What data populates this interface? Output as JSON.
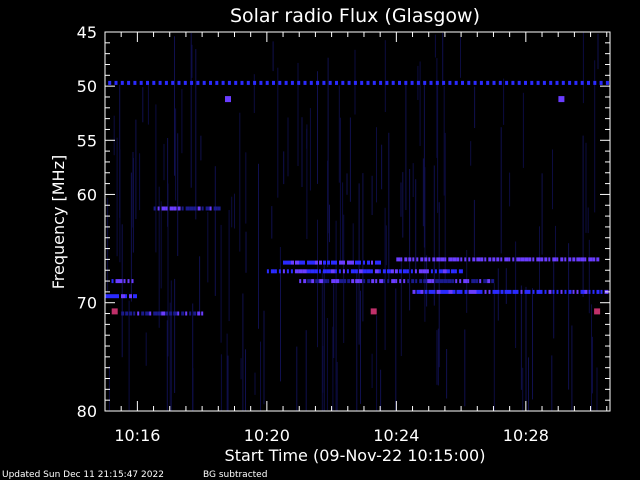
{
  "colors": {
    "background": "#000000",
    "axes": "#ffffff",
    "signal_low": "#1a1a8c",
    "signal_mid": "#2a2aff",
    "signal_high": "#6a3cff",
    "burst": "#c0306a"
  },
  "chart_data": {
    "type": "heatmap",
    "title": "Solar radio Flux (Glasgow)",
    "xlabel": "Start Time (09-Nov-22 10:15:00)",
    "ylabel": "Frequency [MHz]",
    "x_unit": "minutes after 10:15",
    "xlim": [
      0,
      15.6
    ],
    "ylim": [
      45,
      80
    ],
    "y_reversed": true,
    "x_ticks": [
      {
        "value": 1,
        "label": "10:16"
      },
      {
        "value": 5,
        "label": "10:20"
      },
      {
        "value": 9,
        "label": "10:24"
      },
      {
        "value": 13,
        "label": "10:28"
      }
    ],
    "y_ticks": [
      {
        "value": 45,
        "label": "45"
      },
      {
        "value": 50,
        "label": "50"
      },
      {
        "value": 55,
        "label": "55"
      },
      {
        "value": 60,
        "label": "60"
      },
      {
        "value": 70,
        "label": "70"
      },
      {
        "value": 80,
        "label": "80"
      }
    ],
    "features": [
      {
        "kind": "dotted-line",
        "freq": 49.7,
        "t_start": 0.1,
        "t_end": 15.5,
        "intensity": "mid"
      },
      {
        "kind": "band",
        "freq": 66.3,
        "t_start": 5.5,
        "t_end": 8.5,
        "intensity": "mid"
      },
      {
        "kind": "band",
        "freq": 66.0,
        "t_start": 9.0,
        "t_end": 15.3,
        "intensity": "high"
      },
      {
        "kind": "band",
        "freq": 67.1,
        "t_start": 5.0,
        "t_end": 11.0,
        "intensity": "mid"
      },
      {
        "kind": "band",
        "freq": 68.0,
        "t_start": 6.0,
        "t_end": 12.0,
        "intensity": "low"
      },
      {
        "kind": "band",
        "freq": 69.0,
        "t_start": 9.5,
        "t_end": 15.5,
        "intensity": "mid"
      },
      {
        "kind": "band",
        "freq": 68.0,
        "t_start": 0.2,
        "t_end": 0.9,
        "intensity": "mid"
      },
      {
        "kind": "band",
        "freq": 69.4,
        "t_start": 0.0,
        "t_end": 0.9,
        "intensity": "mid"
      },
      {
        "kind": "band",
        "freq": 61.3,
        "t_start": 1.5,
        "t_end": 3.5,
        "intensity": "low"
      },
      {
        "kind": "band",
        "freq": 71.0,
        "t_start": 0.5,
        "t_end": 3.0,
        "intensity": "low"
      },
      {
        "kind": "spot",
        "freq": 51.2,
        "t": 3.8,
        "intensity": "high"
      },
      {
        "kind": "spot",
        "freq": 51.2,
        "t": 14.1,
        "intensity": "high"
      },
      {
        "kind": "spot",
        "freq": 70.8,
        "t": 0.3,
        "intensity": "burst"
      },
      {
        "kind": "spot",
        "freq": 70.8,
        "t": 8.3,
        "intensity": "burst"
      },
      {
        "kind": "spot",
        "freq": 70.8,
        "t": 15.2,
        "intensity": "burst"
      }
    ]
  },
  "footer": {
    "updated": "Updated Sun Dec 11 21:15:47 2022",
    "note": "BG subtracted"
  }
}
